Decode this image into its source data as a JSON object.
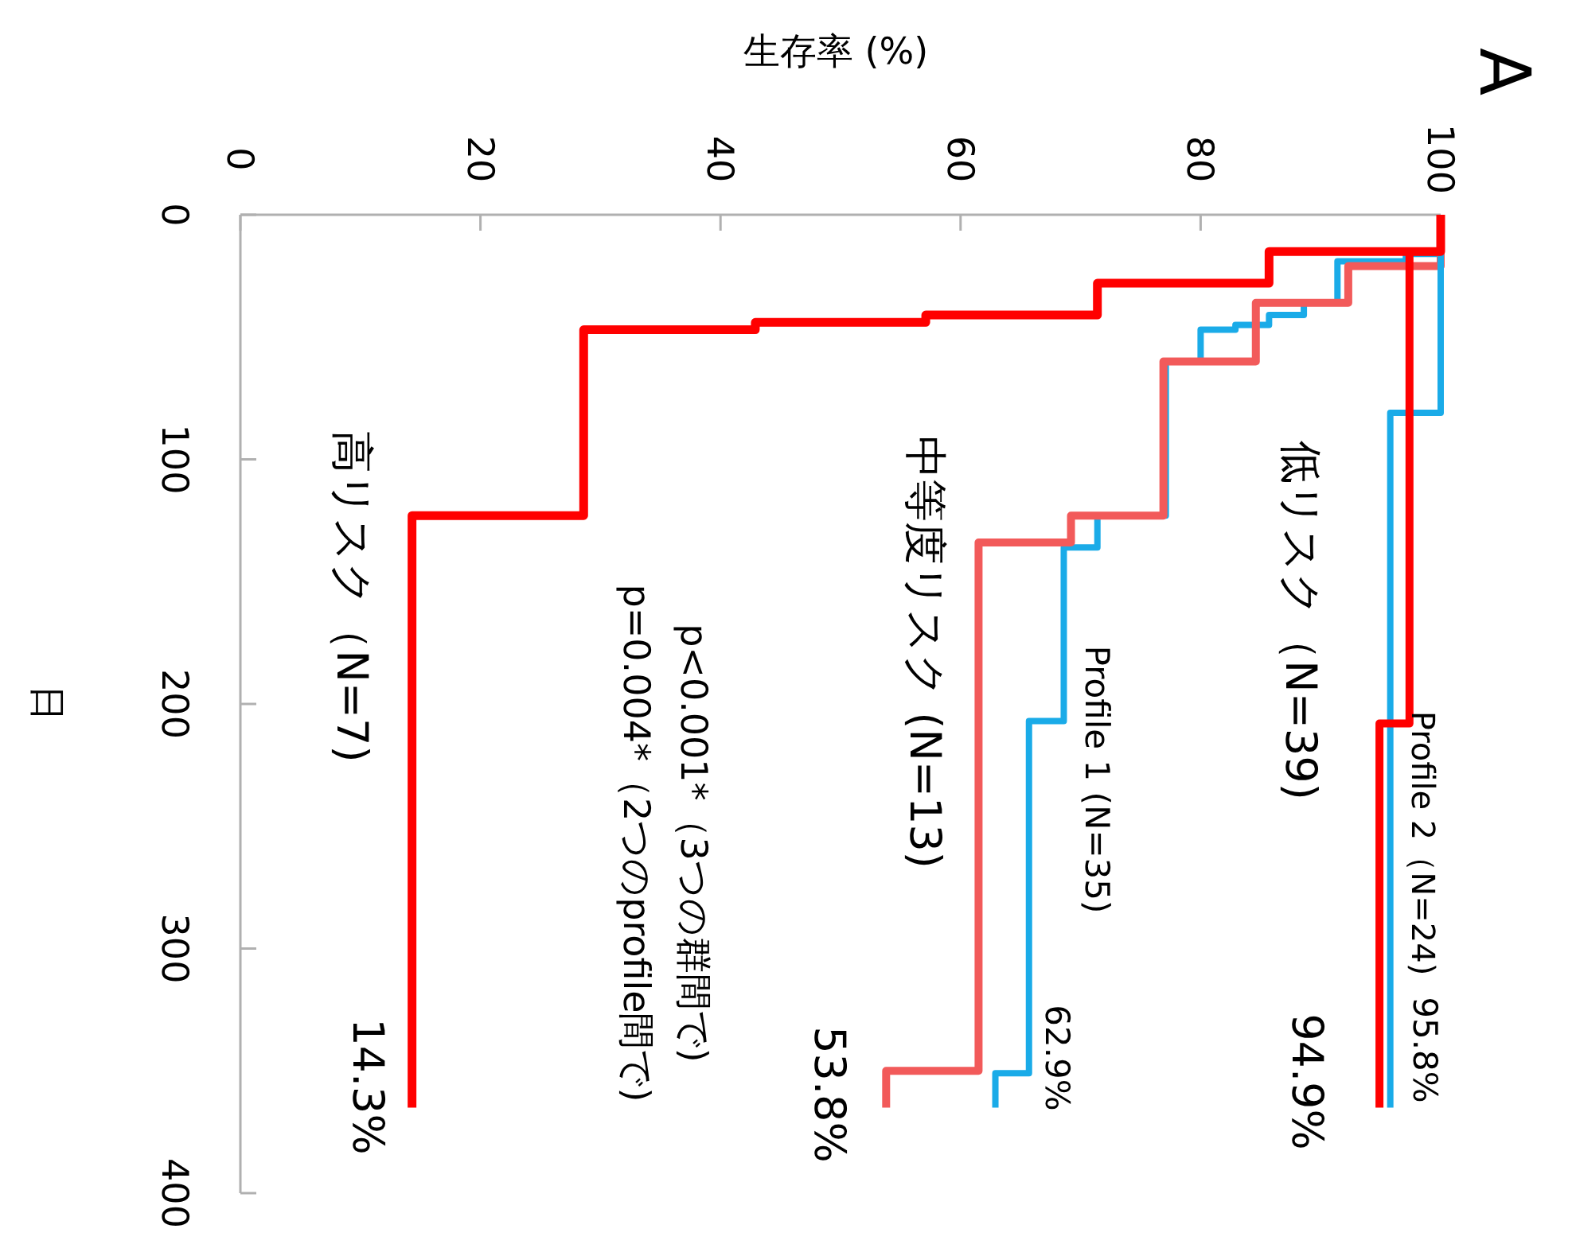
{
  "chart_data": {
    "type": "line",
    "title": "A",
    "xlabel": "生存率 (%)",
    "ylabel": "日",
    "xlim": [
      0,
      100
    ],
    "xticks": [
      0,
      20,
      40,
      60,
      80,
      100
    ],
    "ylim": [
      400,
      0
    ],
    "yticks": [
      0,
      100,
      200,
      300,
      400
    ],
    "series": [
      {
        "name": "低リスク（N=39)",
        "color": "#ff0000",
        "x": [
          100,
          100,
          97.4,
          97.4,
          94.9,
          94.9
        ],
        "values": [
          0,
          15,
          15,
          208,
          208,
          365
        ]
      },
      {
        "name": "Profile 2（N=24)",
        "color": "#1aabe8",
        "x": [
          100,
          100,
          95.8,
          95.8
        ],
        "values": [
          0,
          81,
          81,
          365
        ]
      },
      {
        "name": "中等度リスク (N=13)",
        "color": "#f25a5a",
        "x": [
          100,
          100,
          92.3,
          92.3,
          84.6,
          84.6,
          76.9,
          76.9,
          69.2,
          69.2,
          61.5,
          61.5,
          53.8,
          53.8
        ],
        "values": [
          0,
          21,
          21,
          36,
          36,
          60,
          60,
          123,
          123,
          134,
          134,
          350,
          350,
          365
        ]
      },
      {
        "name": "Profile 1 (N=35)",
        "color": "#1aabe8",
        "x": [
          100,
          100,
          97.1,
          97.1,
          91.4,
          91.4,
          88.6,
          88.6,
          85.7,
          85.7,
          82.9,
          82.9,
          80,
          80,
          77.1,
          77.1,
          71.4,
          71.4,
          68.6,
          68.6,
          65.7,
          65.7,
          62.9,
          62.9
        ],
        "values": [
          0,
          16,
          16,
          19,
          19,
          36,
          36,
          41,
          41,
          45,
          45,
          47,
          47,
          60,
          60,
          123,
          123,
          136,
          136,
          207,
          207,
          351,
          351,
          365
        ]
      },
      {
        "name": "高リスク（N=7)",
        "color": "#ff0000",
        "x": [
          100,
          100,
          85.7,
          85.7,
          71.4,
          71.4,
          57.1,
          57.1,
          42.9,
          42.9,
          28.6,
          28.6,
          14.3,
          14.3
        ],
        "values": [
          0,
          15,
          15,
          28,
          28,
          41,
          41,
          44,
          44,
          47,
          47,
          123,
          123,
          365
        ]
      }
    ],
    "annotations": [
      "94.9%",
      "95.8%",
      "53.8%",
      "62.9%",
      "14.3%",
      "p<0.001*（3つの群間で)",
      "p=0.004*（2つのprofile間で)"
    ]
  }
}
